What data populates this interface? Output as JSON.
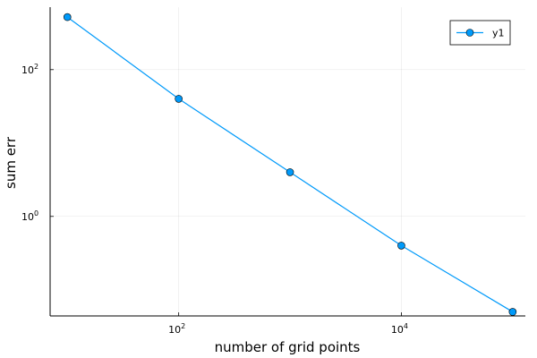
{
  "chart_data": {
    "type": "line",
    "title": "",
    "xlabel": "number of grid points",
    "ylabel": "sum err",
    "x_scale": "log10",
    "y_scale": "log10",
    "x_ticks": [
      {
        "value": 100,
        "base": "10",
        "exp": "2"
      },
      {
        "value": 10000,
        "base": "10",
        "exp": "4"
      }
    ],
    "y_ticks": [
      {
        "value": 1,
        "base": "10",
        "exp": "0"
      },
      {
        "value": 100,
        "base": "10",
        "exp": "2"
      }
    ],
    "xlim": [
      7,
      130000
    ],
    "ylim": [
      0.044,
      710
    ],
    "grid": true,
    "legend_position": "top-right",
    "series": [
      {
        "name": "y1",
        "color": "#009AFA",
        "marker": "circle",
        "x": [
          10,
          100,
          1000,
          10000,
          100000
        ],
        "y": [
          520,
          40,
          4.0,
          0.4,
          0.05
        ]
      }
    ]
  }
}
